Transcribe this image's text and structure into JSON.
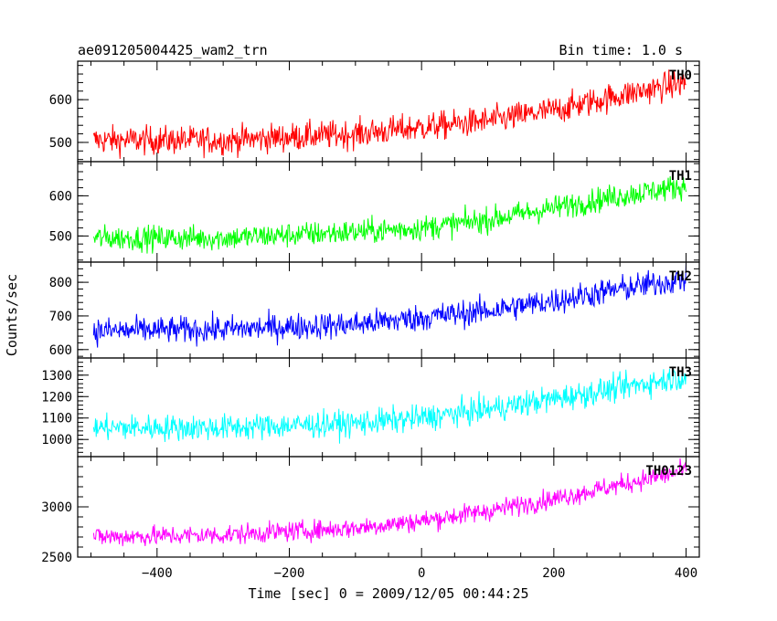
{
  "header": {
    "title": "ae091205004425_wam2_trn",
    "bin_time": "Bin time: 1.0 s"
  },
  "axes": {
    "xlabel": "Time [sec] 0 = 2009/12/05 00:44:25",
    "ylabel": "Counts/sec"
  },
  "chart_data": {
    "type": "line",
    "shared_x": true,
    "xlim": [
      -520,
      420
    ],
    "x_ticks": [
      -400,
      -200,
      0,
      200,
      400
    ],
    "x": {
      "start": -496,
      "end": 400,
      "step": 1
    },
    "series": [
      {
        "name": "TH0",
        "color": "#ff0000",
        "ylim": [
          455,
          690
        ],
        "y_ticks": [
          500,
          600
        ],
        "trend_points": [
          [
            -496,
            505
          ],
          [
            -300,
            505
          ],
          [
            -100,
            520
          ],
          [
            0,
            535
          ],
          [
            100,
            550
          ],
          [
            200,
            575
          ],
          [
            300,
            610
          ],
          [
            400,
            640
          ]
        ],
        "noise_amplitude": 30,
        "y_range_observed": [
          455,
          690
        ]
      },
      {
        "name": "TH1",
        "color": "#00ff00",
        "ylim": [
          435,
          685
        ],
        "y_ticks": [
          500,
          600
        ],
        "trend_points": [
          [
            -496,
            495
          ],
          [
            -300,
            495
          ],
          [
            -100,
            510
          ],
          [
            0,
            520
          ],
          [
            100,
            540
          ],
          [
            200,
            570
          ],
          [
            300,
            600
          ],
          [
            400,
            625
          ]
        ],
        "noise_amplitude": 28,
        "y_range_observed": [
          435,
          685
        ]
      },
      {
        "name": "TH2",
        "color": "#0000ff",
        "ylim": [
          575,
          860
        ],
        "y_ticks": [
          600,
          700,
          800
        ],
        "trend_points": [
          [
            -496,
            655
          ],
          [
            -300,
            660
          ],
          [
            -100,
            675
          ],
          [
            0,
            695
          ],
          [
            100,
            715
          ],
          [
            200,
            745
          ],
          [
            300,
            780
          ],
          [
            400,
            810
          ]
        ],
        "noise_amplitude": 36,
        "y_range_observed": [
          575,
          860
        ]
      },
      {
        "name": "TH3",
        "color": "#00ffff",
        "ylim": [
          920,
          1380
        ],
        "y_ticks": [
          1000,
          1100,
          1200,
          1300
        ],
        "trend_points": [
          [
            -496,
            1055
          ],
          [
            -300,
            1055
          ],
          [
            -100,
            1075
          ],
          [
            0,
            1100
          ],
          [
            100,
            1140
          ],
          [
            200,
            1190
          ],
          [
            300,
            1240
          ],
          [
            400,
            1295
          ]
        ],
        "noise_amplitude": 55,
        "y_range_observed": [
          920,
          1380
        ]
      },
      {
        "name": "TH0123",
        "color": "#ff00ff",
        "ylim": [
          2500,
          3500
        ],
        "y_ticks": [
          2500,
          3000
        ],
        "trend_points": [
          [
            -496,
            2700
          ],
          [
            -300,
            2720
          ],
          [
            -100,
            2790
          ],
          [
            0,
            2860
          ],
          [
            100,
            2960
          ],
          [
            200,
            3080
          ],
          [
            300,
            3220
          ],
          [
            400,
            3360
          ]
        ],
        "noise_amplitude": 90,
        "y_range_observed": [
          2500,
          3500
        ]
      }
    ]
  }
}
